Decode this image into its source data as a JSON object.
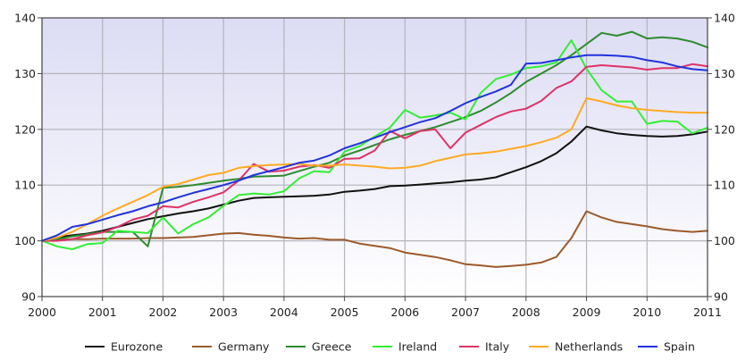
{
  "chart_data": {
    "type": "line",
    "title": "",
    "xlabel": "",
    "ylabel": "",
    "xlim": [
      2000,
      2011
    ],
    "ylim": [
      90,
      140
    ],
    "x_ticks": [
      2000,
      2001,
      2002,
      2003,
      2004,
      2005,
      2006,
      2007,
      2008,
      2009,
      2010,
      2011
    ],
    "x_tick_labels": [
      "2000",
      "2001",
      "2002",
      "2003",
      "2004",
      "2005",
      "2006",
      "2007",
      "2008",
      "2009",
      "2010",
      "2011"
    ],
    "y_ticks": [
      90,
      100,
      110,
      120,
      130,
      140
    ],
    "y_tick_labels": [
      "90",
      "100",
      "110",
      "120",
      "130",
      "140"
    ],
    "grid": true,
    "legend_placement": "bottom",
    "x": [
      2000,
      2000.25,
      2000.5,
      2000.75,
      2001,
      2001.25,
      2001.5,
      2001.75,
      2002,
      2002.25,
      2002.5,
      2002.75,
      2003,
      2003.25,
      2003.5,
      2003.75,
      2004,
      2004.25,
      2004.5,
      2004.75,
      2005,
      2005.25,
      2005.5,
      2005.75,
      2006,
      2006.25,
      2006.5,
      2006.75,
      2007,
      2007.25,
      2007.5,
      2007.75,
      2008,
      2008.25,
      2008.5,
      2008.75,
      2009,
      2009.25,
      2009.5,
      2009.75,
      2010,
      2010.25,
      2010.5,
      2010.75,
      2011
    ],
    "series": [
      {
        "name": "Eurozone",
        "color": "#111111",
        "values": [
          100,
          100.6,
          101.0,
          101.3,
          101.8,
          102.5,
          103.2,
          103.9,
          104.4,
          104.9,
          105.3,
          105.8,
          106.5,
          107.2,
          107.7,
          107.8,
          107.9,
          108.0,
          108.1,
          108.3,
          108.8,
          109.0,
          109.3,
          109.8,
          109.9,
          110.1,
          110.3,
          110.5,
          110.8,
          111.0,
          111.4,
          112.3,
          113.2,
          114.3,
          115.7,
          117.8,
          120.5,
          119.8,
          119.3,
          119.0,
          118.8,
          118.7,
          118.8,
          119.1,
          119.6
        ]
      },
      {
        "name": "Germany",
        "color": "#9c5a2c",
        "values": [
          100,
          100.2,
          100.3,
          100.3,
          100.4,
          100.4,
          100.4,
          100.5,
          100.5,
          100.6,
          100.7,
          101.0,
          101.3,
          101.4,
          101.1,
          100.9,
          100.6,
          100.4,
          100.5,
          100.2,
          100.2,
          99.5,
          99.1,
          98.7,
          97.9,
          97.5,
          97.1,
          96.5,
          95.8,
          95.6,
          95.3,
          95.5,
          95.7,
          96.1,
          97.1,
          100.5,
          105.3,
          104.2,
          103.4,
          103.0,
          102.6,
          102.1,
          101.8,
          101.6,
          101.8
        ]
      },
      {
        "name": "Greece",
        "color": "#2e8b2e",
        "values": [
          100,
          100.3,
          100.8,
          101.2,
          101.6,
          101.6,
          101.6,
          99.0,
          109.5,
          109.7,
          110.0,
          110.4,
          110.8,
          111.1,
          111.5,
          111.6,
          111.7,
          112.5,
          113.3,
          114.0,
          115.3,
          116.2,
          117.2,
          118.2,
          119.0,
          119.7,
          120.4,
          121.3,
          122.2,
          123.3,
          124.8,
          126.5,
          128.5,
          130.0,
          131.5,
          133.3,
          135.3,
          137.3,
          136.8,
          137.5,
          136.3,
          136.5,
          136.3,
          135.7,
          134.7
        ]
      },
      {
        "name": "Ireland",
        "color": "#33ee33",
        "values": [
          100,
          99.0,
          98.5,
          99.4,
          99.6,
          101.8,
          101.6,
          101.4,
          104.2,
          101.3,
          103.0,
          104.2,
          106.3,
          108.2,
          108.5,
          108.3,
          108.9,
          111.2,
          112.5,
          112.3,
          116.0,
          117.0,
          118.7,
          120.3,
          123.5,
          122.1,
          122.5,
          123.0,
          121.8,
          126.5,
          129.0,
          129.8,
          131.0,
          131.3,
          132.0,
          136.0,
          130.9,
          127.0,
          125.0,
          125.0,
          121.0,
          121.5,
          121.4,
          119.3,
          120.3
        ]
      },
      {
        "name": "Italy",
        "color": "#dd3366",
        "values": [
          100,
          100.0,
          100.3,
          101.0,
          101.5,
          102.5,
          103.8,
          104.5,
          106.2,
          106.0,
          107.0,
          107.8,
          108.7,
          110.8,
          113.8,
          112.4,
          112.6,
          113.3,
          113.6,
          113.1,
          114.7,
          114.8,
          116.2,
          119.7,
          118.4,
          119.7,
          120.0,
          116.6,
          119.4,
          120.8,
          122.2,
          123.2,
          123.7,
          125.1,
          127.4,
          128.6,
          131.2,
          131.5,
          131.3,
          131.1,
          130.7,
          131.0,
          131.0,
          131.7,
          131.3
        ]
      },
      {
        "name": "Netherlands",
        "color": "#ffaa22",
        "values": [
          100,
          100.6,
          101.6,
          103.0,
          104.5,
          105.8,
          107.0,
          108.2,
          109.7,
          110.2,
          111.0,
          111.8,
          112.2,
          113.1,
          113.4,
          113.6,
          113.7,
          113.8,
          113.5,
          113.5,
          113.7,
          113.5,
          113.3,
          113.0,
          113.1,
          113.5,
          114.3,
          114.9,
          115.5,
          115.7,
          116.0,
          116.5,
          117.0,
          117.7,
          118.5,
          120.0,
          125.6,
          125.0,
          124.3,
          123.8,
          123.5,
          123.3,
          123.1,
          123.0,
          123.0
        ]
      },
      {
        "name": "Spain",
        "color": "#2233dd",
        "values": [
          100,
          101.0,
          102.5,
          103.0,
          103.8,
          104.6,
          105.3,
          106.2,
          106.9,
          107.8,
          108.6,
          109.3,
          110.0,
          110.8,
          111.8,
          112.5,
          113.2,
          114.0,
          114.4,
          115.3,
          116.6,
          117.5,
          118.5,
          119.5,
          120.4,
          121.3,
          122.0,
          123.3,
          124.7,
          125.8,
          126.8,
          128.0,
          131.8,
          131.9,
          132.4,
          132.9,
          133.3,
          133.3,
          133.2,
          133.0,
          132.4,
          132.0,
          131.3,
          130.8,
          130.6
        ]
      }
    ]
  }
}
